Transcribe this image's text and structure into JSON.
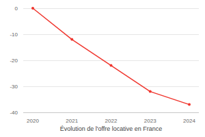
{
  "chart_data": {
    "type": "line",
    "title": "Évolution de l'offre locative en France",
    "categories": [
      "2020",
      "2021",
      "2022",
      "2023",
      "2024"
    ],
    "values": [
      0,
      -12,
      -22,
      -32,
      -37
    ],
    "color": "#f0362e",
    "marker": "circle",
    "ylim": [
      -40,
      0
    ],
    "yticks": [
      0,
      -10,
      -20,
      -30,
      -40
    ],
    "grid": true
  }
}
